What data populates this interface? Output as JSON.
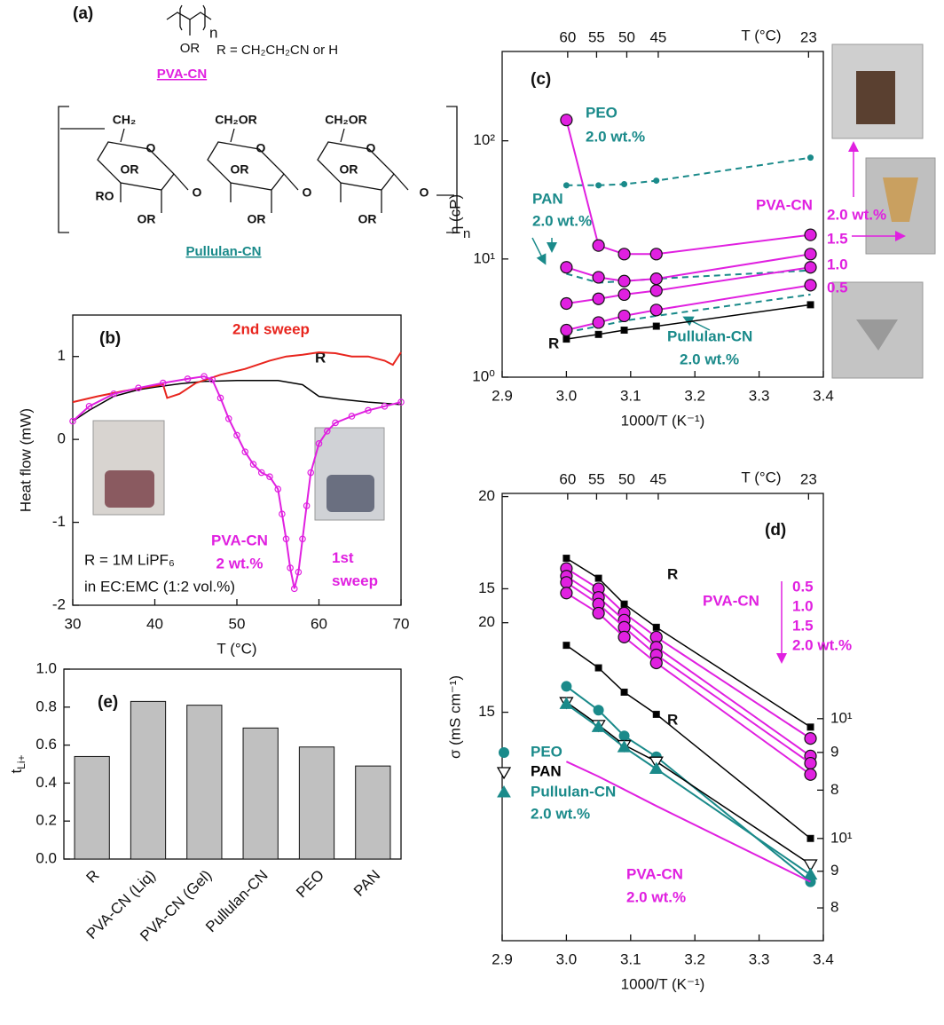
{
  "structures": {
    "label": "(a)",
    "pva": {
      "repeat": "n",
      "side": "OR",
      "r_def": "R = CH₂CH₂CN or H",
      "name": "PVA-CN"
    },
    "pullulan": {
      "labels": [
        "CH₂",
        "CH₂OR",
        "CH₂OR",
        "O",
        "O",
        "O",
        "OR",
        "OR",
        "OR",
        "RO",
        "O",
        "O",
        "O",
        "OR",
        "OR",
        "OR"
      ],
      "repeat": "n",
      "name": "Pullulan-CN"
    }
  },
  "chart_data": [
    {
      "type": "line",
      "label": "(b)",
      "xlabel": "T (°C)",
      "ylabel": "Heat flow (mW)",
      "xlim": [
        30,
        70
      ],
      "xticks": [
        30,
        40,
        50,
        60,
        70
      ],
      "ylim": [
        -2,
        1.5
      ],
      "yticks": [
        -2,
        -1,
        0,
        1
      ],
      "series": [
        {
          "name": "R",
          "color": "#000000",
          "marker": "none",
          "x": [
            30,
            32,
            35,
            38,
            40,
            43,
            46,
            50,
            55,
            58,
            60,
            63,
            66,
            70
          ],
          "values": [
            0.22,
            0.35,
            0.52,
            0.6,
            0.63,
            0.67,
            0.7,
            0.71,
            0.71,
            0.66,
            0.52,
            0.48,
            0.45,
            0.42
          ]
        },
        {
          "name": "2nd sweep",
          "color": "#e8251e",
          "marker": "none",
          "x": [
            30,
            33,
            36,
            39,
            41,
            41.5,
            43,
            45,
            48,
            51,
            54,
            56,
            58,
            60,
            62,
            64,
            66,
            68,
            69,
            70
          ],
          "values": [
            0.45,
            0.52,
            0.58,
            0.63,
            0.66,
            0.5,
            0.55,
            0.68,
            0.78,
            0.85,
            0.95,
            1.0,
            1.02,
            1.05,
            1.04,
            1.0,
            1.0,
            0.95,
            0.9,
            1.05
          ]
        },
        {
          "name": "1st sweep",
          "color": "#e020e0",
          "marker": "open-circle",
          "x": [
            30,
            32,
            35,
            38,
            41,
            44,
            46,
            47,
            48,
            49,
            50,
            51,
            52,
            53,
            54,
            55,
            55.5,
            56,
            56.5,
            57,
            57.5,
            58,
            58.5,
            59,
            60,
            61,
            62,
            64,
            66,
            68,
            70
          ],
          "values": [
            0.22,
            0.4,
            0.55,
            0.62,
            0.68,
            0.73,
            0.76,
            0.72,
            0.5,
            0.25,
            0.05,
            -0.15,
            -0.3,
            -0.4,
            -0.45,
            -0.6,
            -0.9,
            -1.2,
            -1.55,
            -1.8,
            -1.6,
            -1.2,
            -0.8,
            -0.4,
            -0.05,
            0.1,
            0.2,
            0.28,
            0.35,
            0.4,
            0.45
          ]
        }
      ],
      "annotations": [
        "PVA-CN",
        "2 wt.%",
        "R = 1M LiPF₆",
        "in EC:EMC (1:2 vol.%)"
      ]
    },
    {
      "type": "line",
      "label": "(c)",
      "scale_y": "log",
      "xlabel": "1000/T (K⁻¹)",
      "ylabel": "η (cP)",
      "x2label": "T (°C)",
      "xlim": [
        2.9,
        3.4
      ],
      "xticks": [
        2.9,
        {
          "value": 3,
          "label": "3.0"
        },
        3.1,
        3.2,
        3.3,
        3.4
      ],
      "x2ticks": [
        {
          "value": 3.002,
          "label": "60"
        },
        {
          "value": 3.047,
          "label": "55"
        },
        {
          "value": 3.094,
          "label": "50"
        },
        {
          "value": 3.143,
          "label": "45"
        },
        {
          "value": 3.377,
          "label": "23"
        }
      ],
      "ylim": [
        1,
        570
      ],
      "yticks": [
        {
          "value": 1,
          "label": "10⁰"
        },
        {
          "value": 10,
          "label": "10¹"
        },
        {
          "value": 100,
          "label": "10²"
        }
      ],
      "x": [
        3.0,
        3.05,
        3.09,
        3.14,
        3.38
      ],
      "series": [
        {
          "name": "PEO",
          "color": "#1a8a8a",
          "marker": "dot",
          "dash": true,
          "values": [
            42,
            42,
            43,
            46,
            72
          ]
        },
        {
          "name": "PAN",
          "color": "#1a8a8a",
          "marker": "none",
          "dash": true,
          "values": [
            7.5,
            6.3,
            6.5,
            6.8,
            8
          ]
        },
        {
          "name": "Pullulan-CN",
          "color": "#1a8a8a",
          "marker": "none",
          "dash": true,
          "values": [
            2.4,
            2.7,
            3.0,
            3.3,
            5.0
          ]
        },
        {
          "name": "R",
          "color": "#000000",
          "marker": "square",
          "values": [
            2.1,
            2.3,
            2.5,
            2.7,
            4.1
          ]
        },
        {
          "name": "0.5",
          "color": "#e020e0",
          "marker": "circle",
          "values": [
            2.5,
            2.9,
            3.3,
            3.7,
            6.0
          ]
        },
        {
          "name": "1.0",
          "color": "#e020e0",
          "marker": "circle",
          "values": [
            4.2,
            4.6,
            5.0,
            5.4,
            8.5
          ]
        },
        {
          "name": "1.5",
          "color": "#e020e0",
          "marker": "circle",
          "values": [
            8.5,
            7.0,
            6.5,
            6.8,
            11
          ]
        },
        {
          "name": "2.0 wt.%",
          "color": "#e020e0",
          "marker": "circle",
          "values": [
            150,
            13,
            11,
            11,
            16
          ]
        }
      ],
      "annotations": [
        "PVA-CN",
        "2.0 wt.%",
        "2.0 wt.%",
        "2.0 wt.%"
      ]
    },
    {
      "type": "line",
      "label": "(d)",
      "scale_y": "log",
      "xlabel": "1000/T (K⁻¹)",
      "ylabel": "σ (mS cm⁻¹)",
      "x2label": "T (°C)",
      "xlim": [
        2.9,
        3.4
      ],
      "xticks": [
        2.9,
        {
          "value": 3,
          "label": "3.0"
        },
        3.1,
        3.2,
        3.3,
        3.4
      ],
      "x2ticks": [
        {
          "value": 3.002,
          "label": "60"
        },
        {
          "value": 3.047,
          "label": "55"
        },
        {
          "value": 3.094,
          "label": "50"
        },
        {
          "value": 3.143,
          "label": "45"
        },
        {
          "value": 3.377,
          "label": "23"
        }
      ],
      "ylim": [
        5,
        20.2
      ],
      "yticks": [
        15,
        20
      ],
      "y2lim": [
        5,
        20.2
      ],
      "y2ticks": [
        8,
        9,
        {
          "value": 10,
          "label": "10¹"
        }
      ],
      "x": [
        3.0,
        3.05,
        3.09,
        3.14,
        3.38
      ],
      "series": [
        {
          "name": "R",
          "color": "#000000",
          "marker": "square",
          "values": [
            16.5,
            15.5,
            14.3,
            13.3,
            9.74
          ]
        },
        {
          "name": "0.5",
          "color": "#e020e0",
          "marker": "circle",
          "values": [
            15.98,
            15.0,
            13.9,
            12.9,
            9.4
          ]
        },
        {
          "name": "1.0",
          "color": "#e020e0",
          "marker": "circle",
          "values": [
            15.6,
            14.6,
            13.6,
            12.5,
            8.9
          ]
        },
        {
          "name": "1.5",
          "color": "#e020e0",
          "marker": "circle",
          "values": [
            15.3,
            14.3,
            13.3,
            12.2,
            8.7
          ]
        },
        {
          "name": "2.0 wt.%",
          "color": "#e020e0",
          "marker": "circle",
          "values": [
            14.8,
            13.9,
            12.9,
            11.9,
            8.4
          ]
        }
      ],
      "annotations": [
        "PVA-CN"
      ]
    },
    {
      "type": "line",
      "scale_y": "log",
      "legend": "lower left",
      "xlim": [
        2.9,
        3.4
      ],
      "ylim": [
        7.2,
        30.3
      ],
      "yticks": [
        15,
        20
      ],
      "y2lim": [
        7.2,
        30.3
      ],
      "y2ticks": [
        8,
        9,
        {
          "value": 10,
          "label": "10¹"
        }
      ],
      "x": [
        3.0,
        3.05,
        3.09,
        3.14,
        3.38
      ],
      "series": [
        {
          "name": "PEO",
          "color": "#1a8a8a",
          "marker": "dot-big",
          "legend": true,
          "values": [
            16.3,
            15.1,
            13.9,
            13.0,
            8.7
          ]
        },
        {
          "name": "PAN",
          "color": "#000000",
          "marker": "tri-down",
          "legend": true,
          "values": [
            15.5,
            14.4,
            13.5,
            12.8,
            9.2
          ]
        },
        {
          "name": "Pullulan-CN",
          "color": "#1a8a8a",
          "marker": "tri-up",
          "legend": true,
          "values": [
            15.4,
            14.3,
            13.4,
            12.5,
            8.9
          ]
        },
        {
          "name": "R",
          "color": "#000000",
          "marker": "square",
          "values": [
            18.6,
            17.3,
            16.0,
            14.9,
            10.0
          ]
        },
        {
          "name": "PVA-CN",
          "color": "#e020e0",
          "marker": "none",
          "values": [
            12.8,
            12.2,
            11.7,
            11.1,
            8.7
          ]
        }
      ],
      "annotations": [
        "2.0 wt.%",
        "2.0 wt.%"
      ]
    },
    {
      "type": "bar",
      "label": "(e)",
      "ylabel": "tLi+",
      "color": "#c0c0c0",
      "categories": [
        "R",
        "PVA-CN (Liq)",
        "PVA-CN (Gel)",
        "Pullulan-CN",
        "PEO",
        "PAN"
      ],
      "values": [
        0.54,
        0.83,
        0.81,
        0.69,
        0.59,
        0.49
      ],
      "ylim": [
        0,
        1
      ],
      "yticks": [
        {
          "value": 0,
          "label": "0.0"
        },
        0.2,
        0.4,
        0.6,
        0.8,
        {
          "value": 1,
          "label": "1.0"
        }
      ]
    }
  ]
}
